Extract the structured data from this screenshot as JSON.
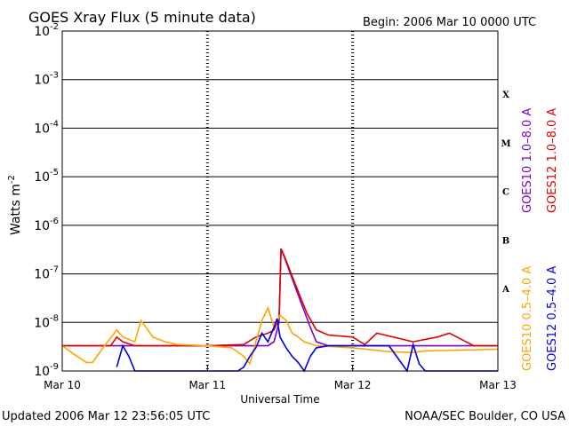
{
  "header": {
    "title": "GOES Xray Flux (5 minute data)",
    "begin": "Begin:  2006 Mar 10 0000 UTC"
  },
  "footer": {
    "updated": "Updated 2006 Mar 12 23:56:05 UTC",
    "credit": "NOAA/SEC Boulder, CO USA"
  },
  "colors": {
    "goes10_long": "#7f00c8",
    "goes12_long": "#e00000",
    "goes10_short": "#ffa500",
    "goes12_short": "#0000e0"
  },
  "chart_data": {
    "type": "line",
    "title": "GOES Xray Flux (5 minute data)",
    "xlabel": "Universal Time",
    "ylabel": "Watts m-2",
    "y_scale": "log",
    "ylim": [
      1e-09,
      0.01
    ],
    "xlim": [
      "2006-03-10 00:00",
      "2006-03-13 00:00"
    ],
    "x_ticks": [
      "Mar 10",
      "Mar 11",
      "Mar 12",
      "Mar 13"
    ],
    "y_ticks": [
      {
        "value": 1e-09,
        "base": "10",
        "exp": "-9"
      },
      {
        "value": 1e-08,
        "base": "10",
        "exp": "-8"
      },
      {
        "value": 1e-07,
        "base": "10",
        "exp": "-7"
      },
      {
        "value": 1e-06,
        "base": "10",
        "exp": "-6"
      },
      {
        "value": 1e-05,
        "base": "10",
        "exp": "-5"
      },
      {
        "value": 0.0001,
        "base": "10",
        "exp": "-4"
      },
      {
        "value": 0.001,
        "base": "10",
        "exp": "-3"
      },
      {
        "value": 0.01,
        "base": "10",
        "exp": "-2"
      }
    ],
    "grid": true,
    "flare_classes": [
      {
        "label": "X",
        "value": 0.0005
      },
      {
        "label": "M",
        "value": 5e-05
      },
      {
        "label": "C",
        "value": 5e-06
      },
      {
        "label": "B",
        "value": 5e-07
      },
      {
        "label": "A",
        "value": 5e-08
      }
    ],
    "legend_placement": "right",
    "series": [
      {
        "name": "GOES10 1.0–8.0 A",
        "color": "#7f00c8",
        "x": [
          "2006-03-10 00:00",
          "2006-03-10 12:00",
          "2006-03-11 00:00",
          "2006-03-11 06:00",
          "2006-03-11 10:00",
          "2006-03-11 11:00",
          "2006-03-11 11:50",
          "2006-03-11 12:10",
          "2006-03-11 12:40",
          "2006-03-11 14:00",
          "2006-03-11 15:30",
          "2006-03-11 17:00",
          "2006-03-11 18:00",
          "2006-03-11 20:00",
          "2006-03-12 00:00",
          "2006-03-12 12:00",
          "2006-03-13 00:00"
        ],
        "y": [
          3.3e-09,
          3.3e-09,
          3.3e-09,
          3.3e-09,
          3.3e-09,
          4e-09,
          1e-08,
          3.3e-07,
          2.3e-07,
          8e-08,
          2.5e-08,
          8e-09,
          4e-09,
          3.3e-09,
          3.3e-09,
          3.3e-09,
          3.3e-09
        ]
      },
      {
        "name": "GOES12 1.0–8.0 A",
        "color": "#e00000",
        "x": [
          "2006-03-10 00:00",
          "2006-03-10 08:00",
          "2006-03-10 09:00",
          "2006-03-10 10:00",
          "2006-03-10 12:00",
          "2006-03-10 16:00",
          "2006-03-11 00:00",
          "2006-03-11 06:00",
          "2006-03-11 08:00",
          "2006-03-11 10:00",
          "2006-03-11 11:00",
          "2006-03-11 11:50",
          "2006-03-11 12:10",
          "2006-03-11 12:40",
          "2006-03-11 14:00",
          "2006-03-11 15:30",
          "2006-03-11 16:30",
          "2006-03-11 18:00",
          "2006-03-11 20:00",
          "2006-03-12 00:00",
          "2006-03-12 02:00",
          "2006-03-12 04:00",
          "2006-03-12 10:00",
          "2006-03-12 14:00",
          "2006-03-12 16:00",
          "2006-03-12 20:00",
          "2006-03-13 00:00"
        ],
        "y": [
          3.3e-09,
          3.3e-09,
          5e-09,
          4e-09,
          3.3e-09,
          3.3e-09,
          3.3e-09,
          3.5e-09,
          5e-09,
          6e-09,
          7e-09,
          1.2e-08,
          3.3e-07,
          2.4e-07,
          9e-08,
          3e-08,
          1.5e-08,
          7e-09,
          5.5e-09,
          5e-09,
          3.5e-09,
          6e-09,
          4e-09,
          5e-09,
          6e-09,
          3.3e-09,
          3.3e-09
        ]
      },
      {
        "name": "GOES10 0.5–4.0 A",
        "color": "#ffa500",
        "x": [
          "2006-03-10 00:00",
          "2006-03-10 02:00",
          "2006-03-10 04:00",
          "2006-03-10 05:00",
          "2006-03-10 07:00",
          "2006-03-10 09:00",
          "2006-03-10 10:00",
          "2006-03-10 12:00",
          "2006-03-10 13:00",
          "2006-03-10 15:00",
          "2006-03-10 17:00",
          "2006-03-10 19:00",
          "2006-03-11 00:00",
          "2006-03-11 04:00",
          "2006-03-11 06:00",
          "2006-03-11 07:00",
          "2006-03-11 08:00",
          "2006-03-11 09:00",
          "2006-03-11 10:00",
          "2006-03-11 11:00",
          "2006-03-11 12:00",
          "2006-03-11 13:00",
          "2006-03-11 14:00",
          "2006-03-11 15:00",
          "2006-03-11 16:00",
          "2006-03-11 18:00",
          "2006-03-12 00:00",
          "2006-03-12 06:00",
          "2006-03-12 10:00",
          "2006-03-12 12:00",
          "2006-03-13 00:00"
        ],
        "y": [
          3.3e-09,
          2.2e-09,
          1.5e-09,
          1.5e-09,
          3.3e-09,
          7e-09,
          5e-09,
          4e-09,
          1.1e-08,
          5e-09,
          4e-09,
          3.5e-09,
          3.3e-09,
          3e-09,
          2e-09,
          1.4e-09,
          4e-09,
          1.1e-08,
          2e-08,
          8e-09,
          1.4e-08,
          1.1e-08,
          6e-09,
          5e-09,
          4e-09,
          3.3e-09,
          3e-09,
          2.5e-09,
          2.4e-09,
          2.6e-09,
          2.8e-09
        ]
      },
      {
        "name": "GOES12 0.5–4.0 A",
        "color": "#0000e0",
        "x": [
          "2006-03-10 09:00",
          "2006-03-10 10:00",
          "2006-03-10 11:00",
          "2006-03-10 12:00",
          "2006-03-10 13:00",
          "2006-03-10 14:00",
          "2006-03-11 05:00",
          "2006-03-11 06:00",
          "2006-03-11 07:00",
          "2006-03-11 08:00",
          "2006-03-11 09:00",
          "2006-03-11 10:00",
          "2006-03-11 11:00",
          "2006-03-11 11:30",
          "2006-03-11 12:00",
          "2006-03-11 13:00",
          "2006-03-11 14:00",
          "2006-03-11 15:00",
          "2006-03-11 16:00",
          "2006-03-11 17:00",
          "2006-03-11 18:00",
          "2006-03-11 20:00",
          "2006-03-12 04:00",
          "2006-03-12 06:00",
          "2006-03-12 09:00",
          "2006-03-12 10:00",
          "2006-03-12 11:00",
          "2006-03-12 12:00",
          "2006-03-12 14:00",
          "2006-03-13 00:00"
        ],
        "y": [
          1.2e-09,
          3.3e-09,
          2e-09,
          1e-09,
          1e-09,
          1e-09,
          1e-09,
          1.2e-09,
          2e-09,
          3e-09,
          6e-09,
          4e-09,
          8e-09,
          1.2e-08,
          5e-09,
          3e-09,
          2e-09,
          1.5e-09,
          1e-09,
          2e-09,
          3e-09,
          3.3e-09,
          3.3e-09,
          3.3e-09,
          1e-09,
          3.5e-09,
          1.4e-09,
          1e-09,
          1e-09,
          1e-09
        ]
      }
    ]
  }
}
